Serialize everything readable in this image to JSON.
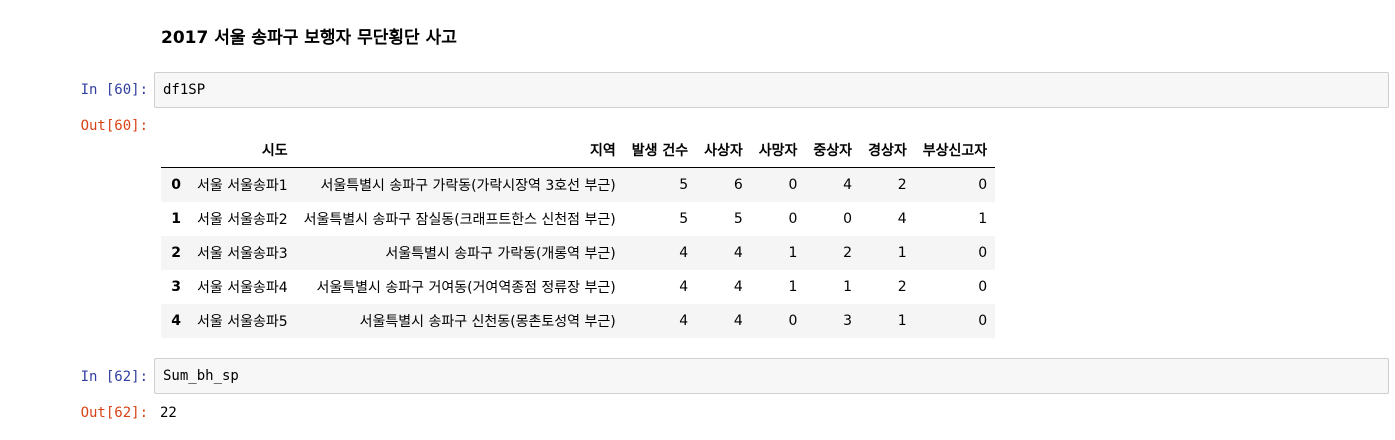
{
  "heading": "2017 서울 송파구 보행자 무단횡단 사고",
  "cells": [
    {
      "in_prompt": "In [60]:",
      "code": "df1SP",
      "out_prompt": "Out[60]:",
      "table": {
        "columns": [
          "시도",
          "지역",
          "발생 건수",
          "사상자",
          "사망자",
          "중상자",
          "경상자",
          "부상신고자"
        ],
        "rows": [
          {
            "index": "0",
            "cells": [
              "서울 서울송파1",
              "서울특별시 송파구 가락동(가락시장역 3호선 부근)",
              "5",
              "6",
              "0",
              "4",
              "2",
              "0"
            ]
          },
          {
            "index": "1",
            "cells": [
              "서울 서울송파2",
              "서울특별시 송파구 잠실동(크래프트한스 신천점 부근)",
              "5",
              "5",
              "0",
              "0",
              "4",
              "1"
            ]
          },
          {
            "index": "2",
            "cells": [
              "서울 서울송파3",
              "서울특별시 송파구 가락동(개롱역 부근)",
              "4",
              "4",
              "1",
              "2",
              "1",
              "0"
            ]
          },
          {
            "index": "3",
            "cells": [
              "서울 서울송파4",
              "서울특별시 송파구 거여동(거여역종점 정류장 부근)",
              "4",
              "4",
              "1",
              "1",
              "2",
              "0"
            ]
          },
          {
            "index": "4",
            "cells": [
              "서울 서울송파5",
              "서울특별시 송파구 신천동(몽촌토성역 부근)",
              "4",
              "4",
              "0",
              "3",
              "1",
              "0"
            ]
          }
        ]
      }
    },
    {
      "in_prompt": "In [62]:",
      "code": "Sum_bh_sp",
      "out_prompt": "Out[62]:",
      "result": "22"
    }
  ]
}
